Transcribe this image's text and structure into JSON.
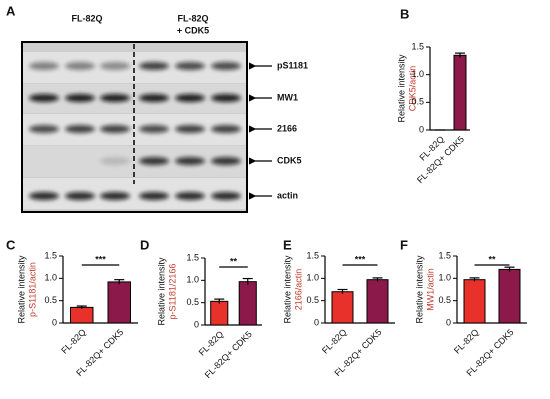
{
  "blot": {
    "panel": "A",
    "header_left": "FL-82Q",
    "header_right": [
      "FL-82Q",
      "+ CDK5"
    ],
    "bands": [
      "pS1181",
      "MW1",
      "2166",
      "CDK5",
      "actin"
    ]
  },
  "chart_data": [
    {
      "type": "bar",
      "panel": "B",
      "ylabel": "Relative intensity",
      "ylabel2": "CDK5/actin",
      "categories": [
        "FL-82Q",
        "FL-82Q+ CDK5"
      ],
      "values": [
        0,
        1.35
      ],
      "errors": [
        0,
        0.04
      ],
      "colors": [
        "#e8312a",
        "#8b1a4a"
      ],
      "ylim": [
        0,
        1.5
      ],
      "yticks": [
        0,
        0.5,
        {
          "value": 1,
          "label": "1.0"
        },
        1.5
      ]
    },
    {
      "type": "bar",
      "panel": "C",
      "ylabel": "Relative intensity",
      "ylabel2": "p-S1181/actin",
      "categories": [
        "FL-82Q",
        "FL-82Q+ CDK5"
      ],
      "values": [
        0.35,
        0.92
      ],
      "errors": [
        0.03,
        0.05
      ],
      "colors": [
        "#e8312a",
        "#8b1a4a"
      ],
      "ylim": [
        0,
        1.5
      ],
      "yticks": [
        0,
        0.5,
        {
          "value": 1,
          "label": "1.0"
        },
        1.5
      ],
      "significance": "***"
    },
    {
      "type": "bar",
      "panel": "D",
      "ylabel": "Relative intensity",
      "ylabel2": "p-S1181/2166",
      "categories": [
        "FL-82Q",
        "FL-82Q+ CDK5"
      ],
      "values": [
        0.53,
        0.97
      ],
      "errors": [
        0.05,
        0.07
      ],
      "colors": [
        "#e8312a",
        "#8b1a4a"
      ],
      "ylim": [
        0,
        1.5
      ],
      "yticks": [
        0,
        0.5,
        {
          "value": 1,
          "label": "1.0"
        },
        1.5
      ],
      "significance": "**"
    },
    {
      "type": "bar",
      "panel": "E",
      "ylabel": "Relative intensity",
      "ylabel2": "2166/actin",
      "categories": [
        "FL-82Q",
        "FL-82Q+ CDK5"
      ],
      "values": [
        0.7,
        0.97
      ],
      "errors": [
        0.05,
        0.04
      ],
      "colors": [
        "#e8312a",
        "#8b1a4a"
      ],
      "ylim": [
        0,
        1.5
      ],
      "yticks": [
        0,
        0.5,
        {
          "value": 1,
          "label": "1.0"
        },
        1.5
      ],
      "significance": "***"
    },
    {
      "type": "bar",
      "panel": "F",
      "ylabel": "Relative intensity",
      "ylabel2": "MW1/actin",
      "categories": [
        "FL-82Q",
        "FL-82Q+ CDK5"
      ],
      "values": [
        0.97,
        1.2
      ],
      "errors": [
        0.04,
        0.05
      ],
      "colors": [
        "#e8312a",
        "#8b1a4a"
      ],
      "ylim": [
        0,
        1.5
      ],
      "yticks": [
        0,
        0.5,
        {
          "value": 1,
          "label": "1.0"
        },
        1.5
      ],
      "significance": "**"
    }
  ]
}
